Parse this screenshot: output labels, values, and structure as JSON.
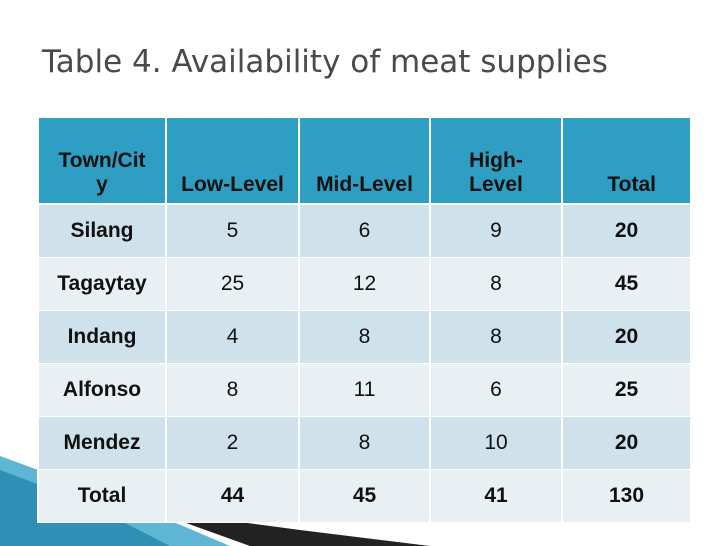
{
  "title": "Table 4. Availability of meat supplies",
  "table": {
    "header": [
      "Town/City",
      "Low-Level",
      "Mid-Level",
      "High-Level",
      "Total"
    ],
    "rows": [
      [
        "Silang",
        5,
        6,
        9,
        20
      ],
      [
        "Tagaytay",
        25,
        12,
        8,
        45
      ],
      [
        "Indang",
        4,
        8,
        8,
        20
      ],
      [
        "Alfonso",
        8,
        11,
        6,
        25
      ],
      [
        "Mendez",
        2,
        8,
        10,
        20
      ],
      [
        "Total",
        44,
        45,
        41,
        130
      ]
    ]
  }
}
